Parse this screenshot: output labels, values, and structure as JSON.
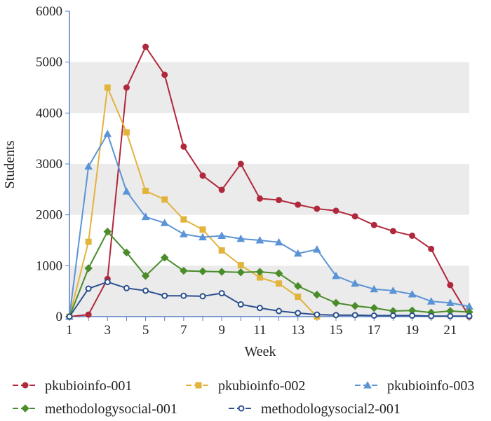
{
  "chart_data": {
    "type": "line",
    "title": "",
    "xlabel": "Week",
    "ylabel": "Students",
    "xlim": [
      1,
      22
    ],
    "ylim": [
      0,
      6000
    ],
    "x_ticks": [
      1,
      3,
      5,
      7,
      9,
      11,
      13,
      15,
      17,
      19,
      21
    ],
    "y_ticks": [
      0,
      1000,
      2000,
      3000,
      4000,
      5000,
      6000
    ],
    "grid": "alternating horizontal bands",
    "band_color": "#ebebeb",
    "axis_color": "#5b7fc4",
    "legend_position": "bottom",
    "x": [
      1,
      2,
      3,
      4,
      5,
      6,
      7,
      8,
      9,
      10,
      11,
      12,
      13,
      14,
      15,
      16,
      17,
      18,
      19,
      20,
      21,
      22
    ],
    "series": [
      {
        "name": "pkubioinfo-001",
        "color": "#b0283c",
        "marker": "circle",
        "filled": true,
        "values": [
          0,
          40,
          740,
          4500,
          5300,
          4750,
          3340,
          2770,
          2490,
          3000,
          2320,
          2290,
          2200,
          2120,
          2080,
          1970,
          1800,
          1680,
          1590,
          1330,
          620,
          0
        ]
      },
      {
        "name": "pkubioinfo-002",
        "color": "#e3b43c",
        "marker": "square",
        "filled": true,
        "values": [
          0,
          1470,
          4500,
          3620,
          2470,
          2300,
          1910,
          1710,
          1300,
          1010,
          770,
          650,
          390,
          0,
          null,
          null,
          null,
          null,
          null,
          null,
          null,
          null
        ]
      },
      {
        "name": "pkubioinfo-003",
        "color": "#5b94d6",
        "marker": "triangle",
        "filled": true,
        "values": [
          0,
          2950,
          3590,
          2460,
          1960,
          1840,
          1620,
          1560,
          1590,
          1530,
          1500,
          1460,
          1240,
          1320,
          800,
          650,
          540,
          510,
          440,
          300,
          270,
          200
        ]
      },
      {
        "name": "methodologysocial-001",
        "color": "#4a8c2a",
        "marker": "diamond",
        "filled": true,
        "values": [
          0,
          950,
          1670,
          1260,
          800,
          1160,
          900,
          890,
          880,
          870,
          880,
          850,
          600,
          430,
          270,
          210,
          170,
          110,
          120,
          80,
          110,
          90
        ]
      },
      {
        "name": "methodologysocial2-001",
        "color": "#2b4f8e",
        "marker": "circle",
        "filled": false,
        "values": [
          0,
          550,
          680,
          560,
          510,
          410,
          410,
          400,
          460,
          240,
          170,
          110,
          70,
          40,
          30,
          30,
          20,
          20,
          20,
          10,
          10,
          10
        ]
      }
    ]
  }
}
